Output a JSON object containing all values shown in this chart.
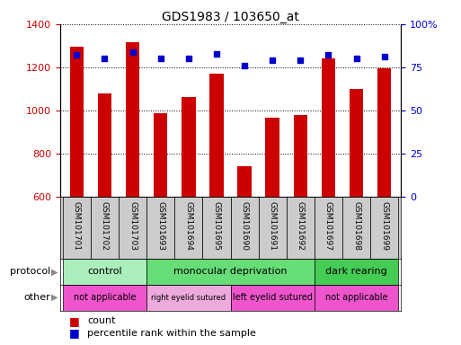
{
  "title": "GDS1983 / 103650_at",
  "samples": [
    "GSM101701",
    "GSM101702",
    "GSM101703",
    "GSM101693",
    "GSM101694",
    "GSM101695",
    "GSM101690",
    "GSM101691",
    "GSM101692",
    "GSM101697",
    "GSM101698",
    "GSM101699"
  ],
  "counts": [
    1295,
    1080,
    1315,
    985,
    1060,
    1170,
    740,
    965,
    980,
    1240,
    1100,
    1195
  ],
  "percentile_ranks": [
    82,
    80,
    84,
    80,
    80,
    83,
    76,
    79,
    79,
    82,
    80,
    81
  ],
  "bar_color": "#cc0000",
  "dot_color": "#0000cc",
  "ylim_left": [
    600,
    1400
  ],
  "ylim_right": [
    0,
    100
  ],
  "yticks_left": [
    600,
    800,
    1000,
    1200,
    1400
  ],
  "yticks_right": [
    0,
    25,
    50,
    75,
    100
  ],
  "protocol_groups": [
    {
      "label": "control",
      "start": 0,
      "end": 3,
      "color": "#aaeebb"
    },
    {
      "label": "monocular deprivation",
      "start": 3,
      "end": 9,
      "color": "#66dd77"
    },
    {
      "label": "dark rearing",
      "start": 9,
      "end": 12,
      "color": "#44cc55"
    }
  ],
  "other_groups": [
    {
      "label": "not applicable",
      "start": 0,
      "end": 3,
      "color": "#ee55cc"
    },
    {
      "label": "right eyelid sutured",
      "start": 3,
      "end": 6,
      "color": "#eeaadd"
    },
    {
      "label": "left eyelid sutured",
      "start": 6,
      "end": 9,
      "color": "#ee55cc"
    },
    {
      "label": "not applicable",
      "start": 9,
      "end": 12,
      "color": "#ee55cc"
    }
  ],
  "legend_count_label": "count",
  "legend_pct_label": "percentile rank within the sample",
  "protocol_label": "protocol",
  "other_label": "other",
  "background_color": "#ffffff",
  "tick_label_color_left": "#cc0000",
  "tick_label_color_right": "#0000cc",
  "sample_bg_color": "#cccccc",
  "bar_width": 0.5
}
